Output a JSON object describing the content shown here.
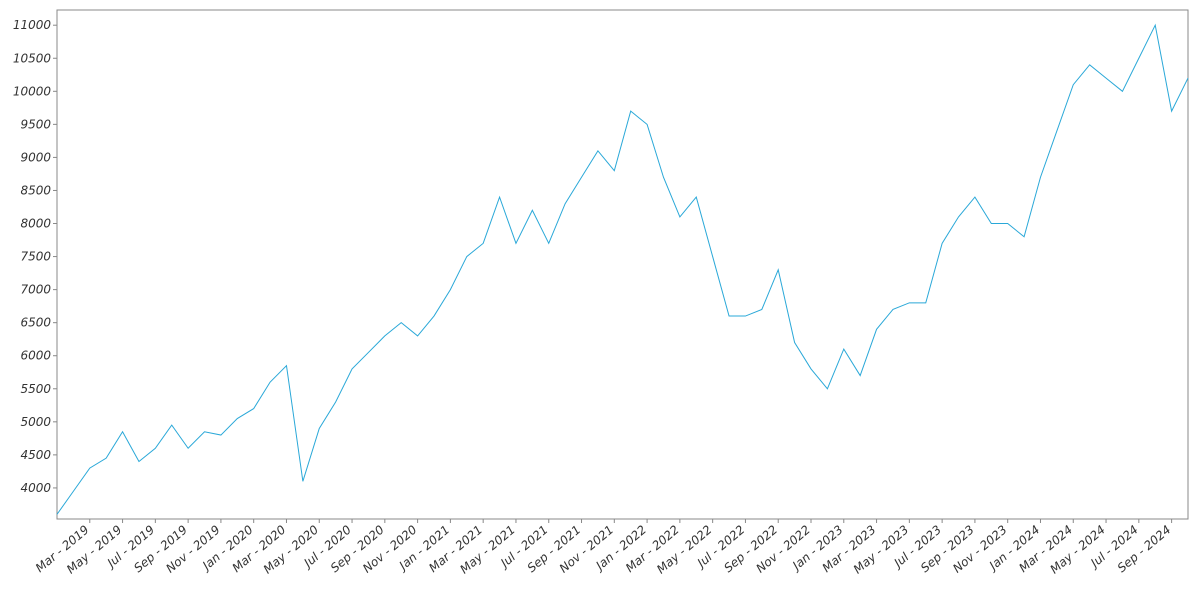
{
  "chart_data": {
    "type": "line",
    "x": [
      "2019-01",
      "2019-02",
      "2019-03",
      "2019-04",
      "2019-05",
      "2019-06",
      "2019-07",
      "2019-08",
      "2019-09",
      "2019-10",
      "2019-11",
      "2019-12",
      "2020-01",
      "2020-02",
      "2020-03",
      "2020-04",
      "2020-05",
      "2020-06",
      "2020-07",
      "2020-08",
      "2020-09",
      "2020-10",
      "2020-11",
      "2020-12",
      "2021-01",
      "2021-02",
      "2021-03",
      "2021-04",
      "2021-05",
      "2021-06",
      "2021-07",
      "2021-08",
      "2021-09",
      "2021-10",
      "2021-11",
      "2021-12",
      "2022-01",
      "2022-02",
      "2022-03",
      "2022-04",
      "2022-05",
      "2022-06",
      "2022-07",
      "2022-08",
      "2022-09",
      "2022-10",
      "2022-11",
      "2022-12",
      "2023-01",
      "2023-02",
      "2023-03",
      "2023-04",
      "2023-05",
      "2023-06",
      "2023-07",
      "2023-08",
      "2023-09",
      "2023-10",
      "2023-11",
      "2023-12",
      "2024-01",
      "2024-02",
      "2024-03",
      "2024-04",
      "2024-05",
      "2024-06",
      "2024-07",
      "2024-08",
      "2024-09",
      "2024-10"
    ],
    "series": [
      {
        "color": "#2aa8d8",
        "values": [
          3600,
          3950,
          4300,
          4450,
          4850,
          4400,
          4600,
          4950,
          4600,
          4850,
          4800,
          5050,
          5200,
          5600,
          5850,
          4100,
          4900,
          5300,
          5800,
          6050,
          6300,
          6500,
          6300,
          6600,
          7000,
          7500,
          7700,
          8400,
          7700,
          8200,
          7700,
          8300,
          8700,
          9100,
          8800,
          9700,
          9500,
          8700,
          8100,
          8400,
          7500,
          6600,
          6600,
          6700,
          7300,
          6200,
          5800,
          5500,
          6100,
          5700,
          6400,
          6700,
          6800,
          6800,
          7700,
          8100,
          8400,
          8000,
          8000,
          7800,
          8700,
          9400,
          10100,
          10400,
          10200,
          10000,
          10500,
          11000,
          9700,
          10200
        ]
      }
    ],
    "xlim": [
      "2019-01",
      "2024-10"
    ],
    "xticks": [
      {
        "value": "2019-03",
        "label": "Mar - 2019"
      },
      {
        "value": "2019-05",
        "label": "May - 2019"
      },
      {
        "value": "2019-07",
        "label": "Jul - 2019"
      },
      {
        "value": "2019-09",
        "label": "Sep - 2019"
      },
      {
        "value": "2019-11",
        "label": "Nov - 2019"
      },
      {
        "value": "2020-01",
        "label": "Jan - 2020"
      },
      {
        "value": "2020-03",
        "label": "Mar - 2020"
      },
      {
        "value": "2020-05",
        "label": "May - 2020"
      },
      {
        "value": "2020-07",
        "label": "Jul - 2020"
      },
      {
        "value": "2020-09",
        "label": "Sep - 2020"
      },
      {
        "value": "2020-11",
        "label": "Nov - 2020"
      },
      {
        "value": "2021-01",
        "label": "Jan - 2021"
      },
      {
        "value": "2021-03",
        "label": "Mar - 2021"
      },
      {
        "value": "2021-05",
        "label": "May - 2021"
      },
      {
        "value": "2021-07",
        "label": "Jul - 2021"
      },
      {
        "value": "2021-09",
        "label": "Sep - 2021"
      },
      {
        "value": "2021-11",
        "label": "Nov - 2021"
      },
      {
        "value": "2022-01",
        "label": "Jan - 2022"
      },
      {
        "value": "2022-03",
        "label": "Mar - 2022"
      },
      {
        "value": "2022-05",
        "label": "May - 2022"
      },
      {
        "value": "2022-07",
        "label": "Jul - 2022"
      },
      {
        "value": "2022-09",
        "label": "Sep - 2022"
      },
      {
        "value": "2022-11",
        "label": "Nov - 2022"
      },
      {
        "value": "2023-01",
        "label": "Jan - 2023"
      },
      {
        "value": "2023-03",
        "label": "Mar - 2023"
      },
      {
        "value": "2023-05",
        "label": "May - 2023"
      },
      {
        "value": "2023-07",
        "label": "Jul - 2023"
      },
      {
        "value": "2023-09",
        "label": "Sep - 2023"
      },
      {
        "value": "2023-11",
        "label": "Nov - 2023"
      },
      {
        "value": "2024-01",
        "label": "Jan - 2024"
      },
      {
        "value": "2024-03",
        "label": "Mar - 2024"
      },
      {
        "value": "2024-05",
        "label": "May - 2024"
      },
      {
        "value": "2024-07",
        "label": "Jul - 2024"
      },
      {
        "value": "2024-09",
        "label": "Sep - 2024"
      }
    ],
    "ylim": [
      3530,
      11230
    ],
    "yticks": [
      4000,
      4500,
      5000,
      5500,
      6000,
      6500,
      7000,
      7500,
      8000,
      8500,
      9000,
      9500,
      10000,
      10500,
      11000
    ]
  }
}
